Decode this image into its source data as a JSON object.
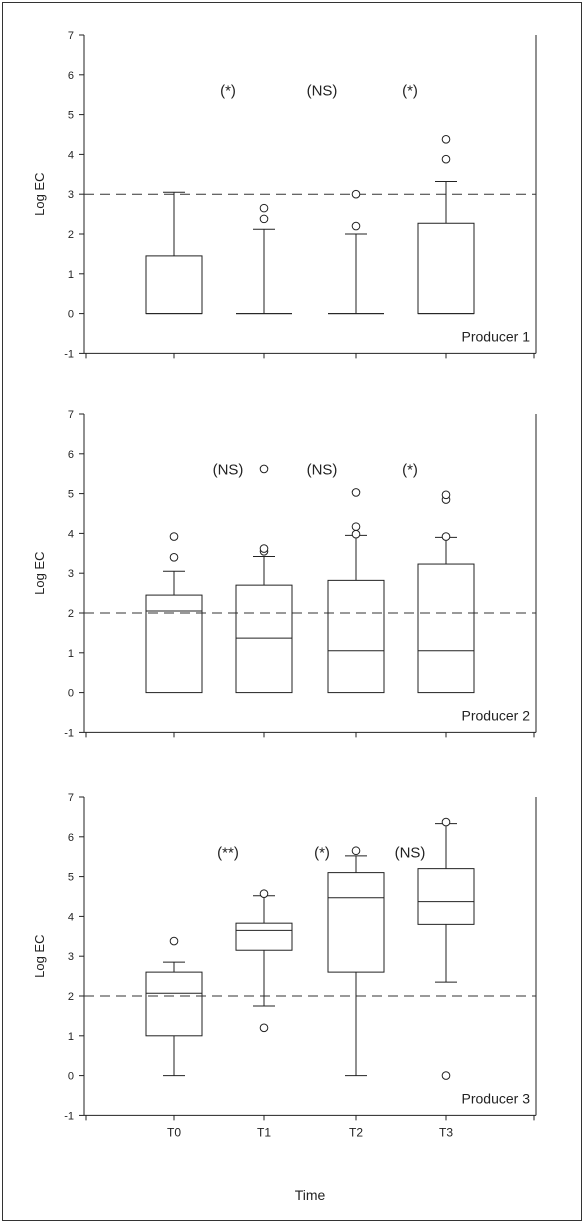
{
  "figure": {
    "x_axis_label": "Time",
    "categories": [
      "T0",
      "T1",
      "T2",
      "T3"
    ]
  },
  "chart_data": [
    {
      "type": "box",
      "panel_label": "Producer 1",
      "ylabel": "Log EC",
      "ylim": [
        -1,
        7
      ],
      "yticks": [
        -1,
        0,
        1,
        2,
        3,
        4,
        5,
        6,
        7
      ],
      "categories": [
        "T0",
        "T1",
        "T2",
        "T3"
      ],
      "reference_line": 3.0,
      "significance": [
        {
          "between": "T0-T1",
          "label": "(*)"
        },
        {
          "between": "T1-T2",
          "label": "(NS)"
        },
        {
          "between": "T2-T3",
          "label": "(*)"
        }
      ],
      "boxes": [
        {
          "category": "T0",
          "whisker_low": 0,
          "q1": 0,
          "median": 0,
          "q3": 1.45,
          "whisker_high": 3.05,
          "outliers": []
        },
        {
          "category": "T1",
          "whisker_low": 0,
          "q1": 0,
          "median": 0,
          "q3": 0,
          "whisker_high": 2.12,
          "outliers": [
            2.38,
            2.65
          ]
        },
        {
          "category": "T2",
          "whisker_low": 0,
          "q1": 0,
          "median": 0,
          "q3": 0,
          "whisker_high": 2.0,
          "outliers": [
            2.2,
            3.0
          ]
        },
        {
          "category": "T3",
          "whisker_low": 0,
          "q1": 0,
          "median": 0,
          "q3": 2.27,
          "whisker_high": 3.32,
          "outliers": [
            3.88,
            4.38
          ]
        }
      ]
    },
    {
      "type": "box",
      "panel_label": "Producer 2",
      "ylabel": "Log EC",
      "ylim": [
        -1,
        7
      ],
      "yticks": [
        -1,
        0,
        1,
        2,
        3,
        4,
        5,
        6,
        7
      ],
      "categories": [
        "T0",
        "T1",
        "T2",
        "T3"
      ],
      "reference_line": 2.0,
      "significance": [
        {
          "between": "T0-T1",
          "label": "(NS)"
        },
        {
          "between": "T1-T2",
          "label": "(NS)"
        },
        {
          "between": "T2-T3",
          "label": "(*)"
        }
      ],
      "boxes": [
        {
          "category": "T0",
          "whisker_low": 0,
          "q1": 0,
          "median": 2.05,
          "q3": 2.45,
          "whisker_high": 3.05,
          "outliers": [
            3.4,
            3.92
          ]
        },
        {
          "category": "T1",
          "whisker_low": 0,
          "q1": 0,
          "median": 1.37,
          "q3": 2.7,
          "whisker_high": 3.42,
          "outliers": [
            3.55,
            3.62,
            5.62
          ]
        },
        {
          "category": "T2",
          "whisker_low": 0,
          "q1": 0,
          "median": 1.05,
          "q3": 2.82,
          "whisker_high": 3.95,
          "outliers": [
            3.98,
            4.17,
            5.03
          ]
        },
        {
          "category": "T3",
          "whisker_low": 0,
          "q1": 0,
          "median": 1.05,
          "q3": 3.23,
          "whisker_high": 3.9,
          "outliers": [
            3.92,
            4.85,
            4.97
          ]
        }
      ]
    },
    {
      "type": "box",
      "panel_label": "Producer 3",
      "ylabel": "Log EC",
      "xlabel": "Time",
      "ylim": [
        -1,
        7
      ],
      "yticks": [
        -1,
        0,
        1,
        2,
        3,
        4,
        5,
        6,
        7
      ],
      "categories": [
        "T0",
        "T1",
        "T2",
        "T3"
      ],
      "reference_line": 2.0,
      "significance": [
        {
          "between": "T0-T1",
          "label": "(**)"
        },
        {
          "between": "T1-T2",
          "label": "(*)"
        },
        {
          "between": "T2-T3",
          "label": "(NS)"
        }
      ],
      "boxes": [
        {
          "category": "T0",
          "whisker_low": 0,
          "q1": 1.0,
          "median": 2.07,
          "q3": 2.6,
          "whisker_high": 2.85,
          "outliers": [
            3.38
          ]
        },
        {
          "category": "T1",
          "whisker_low": 1.75,
          "q1": 3.15,
          "median": 3.65,
          "q3": 3.83,
          "whisker_high": 4.52,
          "outliers": [
            1.2,
            4.57
          ]
        },
        {
          "category": "T2",
          "whisker_low": 0,
          "q1": 2.6,
          "median": 4.47,
          "q3": 5.1,
          "whisker_high": 5.52,
          "outliers": [
            5.65
          ]
        },
        {
          "category": "T3",
          "whisker_low": 2.35,
          "q1": 3.8,
          "median": 4.37,
          "q3": 5.2,
          "whisker_high": 6.33,
          "outliers": [
            0.0,
            6.37
          ]
        }
      ]
    }
  ]
}
